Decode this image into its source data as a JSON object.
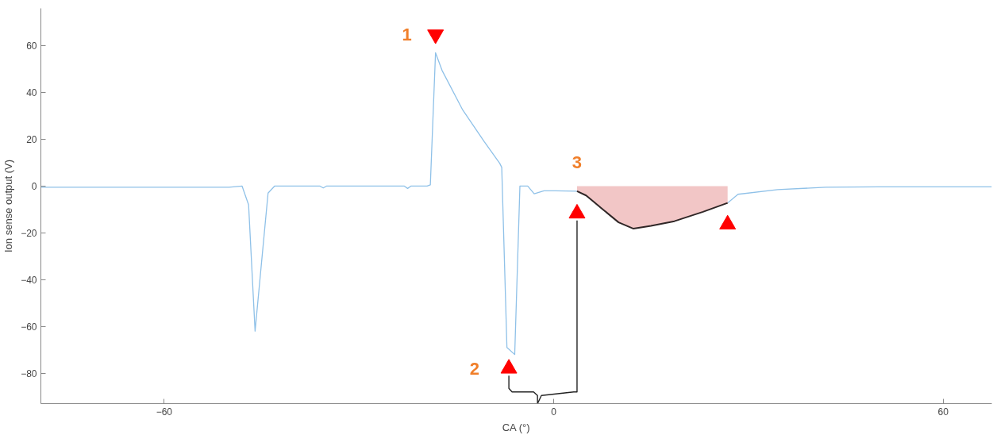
{
  "chart_data": {
    "type": "line",
    "xlabel": "CA (°)",
    "ylabel": "Ion sense output (V)",
    "xlim": [
      -79,
      67.5
    ],
    "ylim": [
      -93,
      76
    ],
    "xticks": [
      -60,
      0,
      60
    ],
    "yticks": [
      -80,
      -60,
      -40,
      -20,
      0,
      20,
      40,
      60
    ],
    "grid": false,
    "marker": "none",
    "line_style": "solid",
    "series": [
      {
        "color": "#8fc1e8",
        "x": [
          -79,
          -60,
          -50,
          -48,
          -47,
          -46,
          -44,
          -43,
          -36,
          -35.5,
          -35,
          -27,
          -23,
          -22.5,
          -22,
          -19.5,
          -19,
          -18.2,
          -17.2,
          -14,
          -10.7,
          -8.3,
          -8,
          -7.2,
          -6,
          -5.2,
          -4,
          -3,
          -1.5,
          0.3,
          3.6,
          5,
          7.6,
          10,
          12.3,
          15,
          18.6,
          23,
          26.8,
          28.4,
          34.5,
          41.9,
          50,
          67.5
        ],
        "values": [
          -0.5,
          -0.5,
          -0.5,
          0,
          -8,
          -62,
          -3,
          0,
          0,
          -0.8,
          0,
          0,
          0,
          -1,
          0,
          0,
          0.5,
          57,
          49.5,
          32.5,
          19,
          9.7,
          8,
          -69,
          -72,
          0,
          0,
          -3.3,
          -2,
          -2,
          -2.2,
          null,
          null,
          null,
          null,
          null,
          null,
          null,
          -7.2,
          -3.5,
          -1.5,
          -0.5,
          -0.3,
          -0.3
        ]
      },
      {
        "type": "area",
        "color": "#f2c6c6",
        "x": [
          3.6,
          5,
          7.6,
          10,
          12.3,
          15,
          18.6,
          23,
          26.8
        ],
        "values": [
          -2.2,
          -4,
          -10,
          -15.5,
          -18.2,
          -17,
          -15,
          -11,
          -7.2
        ]
      },
      {
        "type": "scatter",
        "marker": "triangle",
        "color": "#ff0000",
        "x": [
          -18.2,
          -6.9,
          3.6,
          26.8
        ],
        "values": [
          64.8,
          -78,
          -11.7,
          -16.4
        ]
      }
    ],
    "annotations": [
      "1",
      "2",
      "3"
    ]
  }
}
